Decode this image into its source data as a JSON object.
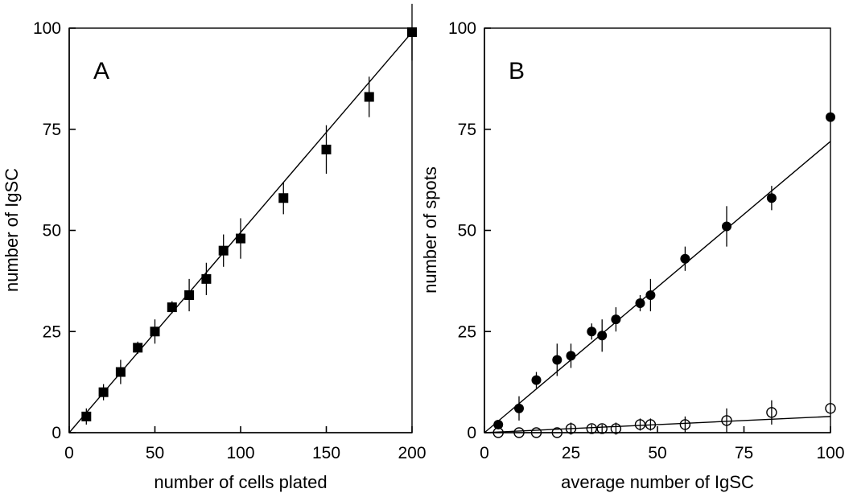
{
  "chart_data": [
    {
      "type": "scatter",
      "panel_label": "A",
      "title": "",
      "xlabel": "number of cells plated",
      "ylabel": "number of IgSC",
      "xlim": [
        0,
        200
      ],
      "ylim": [
        0,
        100
      ],
      "x_ticks": [
        0,
        50,
        100,
        150,
        200
      ],
      "y_ticks": [
        0,
        25,
        50,
        75,
        100
      ],
      "grid": false,
      "series": [
        {
          "marker": "filled-square",
          "x": [
            10,
            20,
            30,
            40,
            50,
            60,
            70,
            80,
            90,
            100,
            125,
            150,
            175,
            200
          ],
          "y": [
            4,
            10,
            15,
            21,
            25,
            31,
            34,
            38,
            45,
            48,
            58,
            70,
            83,
            99
          ],
          "err": [
            2,
            2,
            3,
            1.5,
            3,
            1.5,
            4,
            4,
            4,
            5,
            4,
            6,
            5,
            7
          ]
        }
      ],
      "fit_lines": [
        {
          "x": [
            0,
            200
          ],
          "y": [
            0,
            99
          ]
        }
      ]
    },
    {
      "type": "scatter",
      "panel_label": "B",
      "title": "",
      "xlabel": "average number of IgSC",
      "ylabel": "number of spots",
      "xlim": [
        0,
        100
      ],
      "ylim": [
        0,
        100
      ],
      "x_ticks": [
        0,
        25,
        50,
        75,
        100
      ],
      "y_ticks": [
        0,
        25,
        50,
        75,
        100
      ],
      "grid": false,
      "series": [
        {
          "marker": "filled-circle",
          "x": [
            4,
            10,
            15,
            21,
            25,
            31,
            34,
            38,
            45,
            48,
            58,
            70,
            83,
            100
          ],
          "y": [
            2,
            6,
            13,
            18,
            19,
            25,
            24,
            28,
            32,
            34,
            43,
            51,
            58,
            78
          ],
          "err": [
            1,
            3,
            2,
            4,
            3,
            2,
            4,
            3,
            2,
            4,
            3,
            5,
            3,
            0
          ]
        },
        {
          "marker": "open-circle",
          "x": [
            4,
            10,
            15,
            21,
            25,
            31,
            34,
            38,
            45,
            48,
            58,
            70,
            83,
            100
          ],
          "y": [
            0,
            0,
            0,
            0,
            1,
            1,
            1,
            1,
            2,
            2,
            2,
            3,
            5,
            6
          ],
          "err": [
            0,
            0,
            0,
            0,
            1.5,
            1,
            1,
            1.5,
            1.5,
            1.5,
            2,
            3,
            3,
            0
          ]
        }
      ],
      "fit_lines": [
        {
          "x": [
            0,
            100
          ],
          "y": [
            0,
            72
          ]
        },
        {
          "x": [
            0,
            100
          ],
          "y": [
            0,
            4
          ]
        }
      ]
    }
  ]
}
